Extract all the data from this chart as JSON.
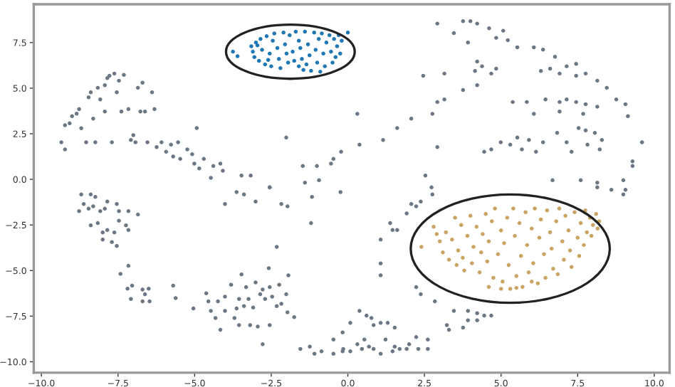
{
  "chart_data": {
    "type": "scatter",
    "marker": "circle",
    "grid": false,
    "xlim": [
      -10.25,
      10.5
    ],
    "ylim": [
      -10.6,
      9.6
    ],
    "xticks": [
      {
        "value": -10,
        "label": "−10.0"
      },
      {
        "value": -7.5,
        "label": "−7.5"
      },
      {
        "value": -5,
        "label": "−5.0"
      },
      {
        "value": -2.5,
        "label": "−2.5"
      },
      {
        "value": 0,
        "label": "0.0"
      },
      {
        "value": 2.5,
        "label": "2.5"
      },
      {
        "value": 5,
        "label": "5.0"
      },
      {
        "value": 7.5,
        "label": "7.5"
      },
      {
        "value": 10,
        "label": "10.0"
      }
    ],
    "yticks": [
      {
        "value": -10,
        "label": "−10.0"
      },
      {
        "value": -7.5,
        "label": "−7.5"
      },
      {
        "value": -5,
        "label": "−5.0"
      },
      {
        "value": -2.5,
        "label": "−2.5"
      },
      {
        "value": 0,
        "label": "0.0"
      },
      {
        "value": 2.5,
        "label": "2.5"
      },
      {
        "value": 5,
        "label": "5.0"
      },
      {
        "value": 7.5,
        "label": "7.5"
      }
    ],
    "series": [
      {
        "color": "#6b7785",
        "x": [
          -9.35,
          -9.23,
          -9.23,
          -9.08,
          -9.0,
          -8.85,
          -8.77,
          -8.7,
          -8.54,
          -8.46,
          -8.39,
          -8.31,
          -8.24,
          -8.16,
          -8.08,
          -7.93,
          -7.93,
          -7.85,
          -7.78,
          -7.7,
          -7.62,
          -7.54,
          -7.47,
          -7.39,
          -7.31,
          -7.16,
          -7.08,
          -7.0,
          -6.93,
          -6.85,
          -6.77,
          -6.7,
          -6.62,
          -6.54,
          -6.39,
          -6.31,
          -6.24,
          -6.08,
          -5.93,
          -5.77,
          -5.7,
          -5.54,
          -5.47,
          -5.24,
          -5.08,
          -4.93,
          -5.01,
          -4.85,
          -4.7,
          -4.47,
          -4.39,
          -4.16,
          -4.08,
          -3.47,
          -3.17,
          -2.55,
          -2.01,
          -1.47,
          -1.4,
          -1.01,
          -0.94,
          -0.55,
          -0.47,
          -0.22,
          2.92,
          3.46,
          3.76,
          4.0,
          4.22,
          3.92,
          4.61,
          4.84,
          5.07,
          5.22,
          5.53,
          6.07,
          6.37,
          6.76,
          7.14,
          7.45,
          7.76,
          8.14,
          8.45,
          8.76,
          9.06,
          9.14,
          9.6,
          4.22,
          4.38,
          4.15,
          4.68,
          4.84,
          6.3,
          6.6,
          6.91,
          7.45,
          4.22,
          3.76,
          2.92,
          3.15,
          2.46,
          3.15,
          5.38,
          5.84,
          6.45,
          6.91,
          7.14,
          7.45,
          7.76,
          8.14,
          6.07,
          6.91,
          7.68,
          2.76,
          2.07,
          1.61,
          0.31,
          1.15,
          0.38,
          2.92,
          4.45,
          4.68,
          4.99,
          5.3,
          5.53,
          5.68,
          5.91,
          6.14,
          6.37,
          6.83,
          7.14,
          7.3,
          7.53,
          7.82,
          8.06,
          8.29,
          8.22,
          7.76,
          9.29,
          9.29,
          2.53,
          6.68,
          7.6,
          8.14,
          8.99,
          9.06,
          2.73,
          -8.7,
          -8.39,
          -8.24,
          -8.62,
          -8.77,
          -8.46,
          -8.31,
          -8.08,
          -7.85,
          -7.93,
          -7.54,
          -7.47,
          -7.16,
          -6.85,
          -8.39,
          -8.16,
          -8.0,
          -7.85,
          -7.62,
          -7.47,
          -7.24,
          -7.16,
          -8.0,
          -7.7,
          -7.54,
          -7.16,
          -7.42,
          -7.19,
          -7.04,
          -7.08,
          -6.7,
          -6.62,
          -6.5,
          -6.7,
          -6.47,
          -5.7,
          -5.62,
          -5.04,
          -4.62,
          -4.55,
          -4.47,
          -4.32,
          -4.16,
          -4.24,
          -4.01,
          -4.01,
          -3.81,
          -3.7,
          -3.63,
          -3.55,
          -3.55,
          -3.47,
          -3.39,
          -3.32,
          -3.24,
          -3.19,
          -3.09,
          -3.01,
          -2.94,
          -2.86,
          -2.78,
          -2.7,
          -2.78,
          -2.58,
          -2.55,
          -2.47,
          -2.55,
          -2.32,
          -2.24,
          -2.17,
          -2.01,
          -1.97,
          -1.94,
          -1.75,
          -2.32,
          -4.01,
          -3.63,
          -3.39,
          -3.01,
          -2.55,
          -2.17,
          -1.97,
          -1.17,
          -1.2,
          -0.24,
          -1.55,
          -1.24,
          -1.09,
          -0.86,
          -0.47,
          -0.47,
          -0.17,
          -0.17,
          -0.15,
          0.08,
          0.31,
          0.46,
          0.54,
          0.69,
          0.84,
          1.07,
          1.23,
          1.46,
          1.53,
          1.69,
          1.92,
          2.0,
          2.23,
          2.3,
          2.61,
          2.61,
          0.08,
          0.38,
          0.61,
          0.77,
          0.84,
          1.07,
          1.3,
          1.53,
          3.23,
          3.3,
          3.46,
          3.76,
          3.92,
          3.92,
          4.22,
          4.22,
          4.45,
          4.68,
          2.23,
          2.38,
          2.84,
          1.07,
          1.07,
          1.07,
          1.38,
          1.46,
          1.61,
          1.92,
          2.07,
          2.23,
          2.38,
          2.76,
          8.14,
          8.6,
          8.99
        ],
        "values": [
          2.03,
          1.64,
          2.97,
          3.07,
          3.46,
          3.6,
          3.85,
          2.8,
          2.03,
          4.5,
          4.77,
          3.33,
          2.03,
          5.02,
          4.38,
          3.72,
          5.16,
          5.55,
          5.68,
          2.03,
          5.8,
          4.77,
          5.41,
          3.72,
          5.73,
          3.85,
          2.16,
          2.42,
          2.03,
          5.02,
          3.72,
          5.3,
          3.72,
          2.03,
          4.77,
          3.85,
          1.77,
          2.03,
          1.51,
          1.9,
          1.25,
          2.03,
          1.12,
          1.64,
          1.38,
          2.81,
          0.86,
          0.6,
          1.12,
          0.08,
          0.73,
          0.86,
          0.47,
          0.21,
          0.21,
          -0.44,
          2.29,
          0.73,
          -0.18,
          0.73,
          -0.05,
          0.86,
          1.12,
          1.51,
          8.54,
          8.02,
          8.67,
          8.67,
          8.54,
          7.5,
          8.28,
          7.76,
          8.15,
          7.63,
          7.24,
          7.24,
          7.11,
          6.72,
          6.2,
          6.33,
          5.8,
          5.41,
          5.02,
          4.38,
          4.12,
          3.46,
          2.03,
          6.46,
          6.2,
          5.94,
          5.8,
          6.07,
          5.94,
          6.07,
          5.8,
          5.68,
          5.16,
          4.9,
          4.24,
          4.38,
          5.68,
          5.8,
          4.24,
          4.24,
          4.38,
          4.24,
          4.38,
          4.24,
          4.12,
          3.98,
          3.59,
          3.72,
          3.59,
          3.59,
          3.33,
          2.81,
          3.59,
          2.16,
          1.9,
          1.77,
          1.51,
          1.64,
          2.03,
          1.9,
          2.29,
          1.64,
          2.16,
          1.51,
          2.03,
          2.55,
          2.03,
          1.51,
          2.81,
          1.9,
          2.55,
          2.16,
          1.64,
          2.68,
          0.99,
          0.73,
          0.21,
          -0.05,
          -0.05,
          -0.18,
          -0.05,
          -0.57,
          -0.44,
          -0.83,
          -0.83,
          -0.96,
          -1.35,
          -1.74,
          -1.61,
          -1.48,
          -1.74,
          -1.22,
          -1.61,
          -1.35,
          -1.74,
          -1.74,
          -1.93,
          -2.52,
          -2.4,
          -2.91,
          -2.78,
          -2.91,
          -2.27,
          -2.52,
          -2.78,
          -3.3,
          -3.44,
          -3.65,
          -4.74,
          -5.18,
          -5.99,
          -5.83,
          -6.56,
          -6.04,
          -6.3,
          -5.99,
          -6.69,
          -6.69,
          -5.83,
          -6.51,
          -7.08,
          -6.25,
          -6.69,
          -7.21,
          -7.6,
          -8.25,
          -6.69,
          -6.43,
          -7.21,
          -5.78,
          -7.6,
          -7.08,
          -6.56,
          -7.99,
          -5.21,
          -6.95,
          -5.91,
          -6.56,
          -7.99,
          -7.03,
          -5.65,
          -8.07,
          -6.3,
          -6.04,
          -6.56,
          -9.04,
          -4.87,
          -5.91,
          -6.43,
          -7.99,
          -6.95,
          -5.78,
          -6.82,
          -6.3,
          -7.29,
          -5.26,
          -7.55,
          -3.7,
          -1.35,
          -0.7,
          -0.83,
          -1.22,
          -0.44,
          -1.35,
          -1.48,
          -0.96,
          -2.4,
          -0.7,
          -9.3,
          -9.17,
          -9.56,
          -9.43,
          -8.78,
          -9.56,
          -8.39,
          -9.43,
          -9.3,
          -9.43,
          -9.04,
          -9.3,
          -8.78,
          -9.17,
          -9.3,
          -9.56,
          -8.78,
          -9.43,
          -9.17,
          -9.3,
          -9.3,
          -9.04,
          -8.65,
          -9.3,
          -8.78,
          -9.3,
          -7.87,
          -7.21,
          -7.47,
          -7.6,
          -7.99,
          -7.87,
          -7.87,
          -8.13,
          -7.99,
          -8.25,
          -7.21,
          -8.13,
          -7.21,
          -7.73,
          -7.34,
          -7.73,
          -7.47,
          -7.47,
          -5.91,
          -6.3,
          -6.69,
          -3.3,
          -4.61,
          -5.26,
          -2.4,
          -2.78,
          -2.78,
          -1.87,
          -1.35,
          -1.48,
          -1.22,
          -0.83,
          -0.44,
          -0.57,
          -0.83
        ]
      },
      {
        "color": "#1f77b4",
        "x": [
          -3.75,
          -3.6,
          -3.15,
          -3.1,
          -3.05,
          -3.0,
          -2.9,
          -2.85,
          -2.8,
          -2.7,
          -2.65,
          -2.55,
          -2.5,
          -2.45,
          -2.4,
          -2.3,
          -2.25,
          -2.2,
          -2.1,
          -2.05,
          -2.0,
          -1.95,
          -1.9,
          -1.8,
          -1.75,
          -1.7,
          -1.6,
          -1.55,
          -1.5,
          -1.45,
          -1.4,
          -1.3,
          -1.25,
          -1.2,
          -1.1,
          -1.05,
          -1.0,
          -0.95,
          -0.9,
          -0.85,
          -0.8,
          -0.75,
          -0.7,
          -0.6,
          -0.55,
          -0.5,
          -0.45,
          -0.4,
          -0.35,
          -0.3,
          -0.25,
          -1.6,
          -2.6,
          -2.95,
          -1.35,
          -0.2,
          0.0
        ],
        "values": [
          7.0,
          6.75,
          7.3,
          7.0,
          6.7,
          7.5,
          6.5,
          7.7,
          7.1,
          6.3,
          7.85,
          6.9,
          6.2,
          7.6,
          8.0,
          7.2,
          6.6,
          6.1,
          8.05,
          7.4,
          6.9,
          6.4,
          7.9,
          7.0,
          6.5,
          8.1,
          7.6,
          7.2,
          6.6,
          6.0,
          8.1,
          7.4,
          6.8,
          5.95,
          8.05,
          7.1,
          6.4,
          7.7,
          5.9,
          8.0,
          6.9,
          6.2,
          7.5,
          7.9,
          7.0,
          6.4,
          7.7,
          6.7,
          7.3,
          7.9,
          6.9,
          6.2,
          6.55,
          7.35,
          6.3,
          7.6,
          8.05
        ]
      },
      {
        "color": "#c9a463",
        "x": [
          2.4,
          2.8,
          2.9,
          3.0,
          3.1,
          3.2,
          3.3,
          3.4,
          3.5,
          3.55,
          3.6,
          3.7,
          3.75,
          3.8,
          3.9,
          4.0,
          4.05,
          4.1,
          4.2,
          4.3,
          4.35,
          4.4,
          4.5,
          4.55,
          4.6,
          4.7,
          4.75,
          4.8,
          4.9,
          5.0,
          5.05,
          5.1,
          5.2,
          5.25,
          5.3,
          5.4,
          5.45,
          5.5,
          5.6,
          5.65,
          5.7,
          5.8,
          5.85,
          5.9,
          6.0,
          6.05,
          6.1,
          6.2,
          6.25,
          6.3,
          6.4,
          6.45,
          6.5,
          6.6,
          6.65,
          6.7,
          6.8,
          6.85,
          6.9,
          7.0,
          7.05,
          7.1,
          7.2,
          7.25,
          7.3,
          7.4,
          7.5,
          7.55,
          7.6,
          7.7,
          7.75,
          7.8,
          7.9,
          7.95,
          8.0,
          8.1,
          8.15,
          8.2,
          5.5,
          5.0,
          4.6,
          6.0
        ],
        "values": [
          -3.7,
          -2.6,
          -3.0,
          -3.4,
          -4.0,
          -2.9,
          -4.4,
          -3.3,
          -2.1,
          -4.7,
          -3.9,
          -2.5,
          -4.3,
          -5.0,
          -3.1,
          -2.0,
          -4.6,
          -3.7,
          -2.6,
          -5.1,
          -4.0,
          -3.0,
          -1.9,
          -4.5,
          -3.4,
          -2.3,
          -5.4,
          -1.6,
          -4.1,
          -2.8,
          -5.6,
          -3.5,
          -2.1,
          -4.7,
          -6.0,
          -1.6,
          -3.1,
          -5.3,
          -2.4,
          -4.2,
          -5.9,
          -1.8,
          -3.6,
          -5.1,
          -2.7,
          -4.6,
          -1.6,
          -5.7,
          -3.2,
          -2.2,
          -4.1,
          -5.4,
          -1.7,
          -2.9,
          -3.8,
          -4.9,
          -2.3,
          -5.2,
          -1.6,
          -3.4,
          -4.4,
          -2.0,
          -2.8,
          -3.9,
          -4.8,
          -1.8,
          -3.2,
          -4.2,
          -2.4,
          -3.6,
          -1.7,
          -2.9,
          -2.1,
          -3.1,
          -2.5,
          -1.9,
          -2.7,
          -2.3,
          -5.95,
          -6.0,
          -5.9,
          -5.6
        ]
      }
    ]
  }
}
